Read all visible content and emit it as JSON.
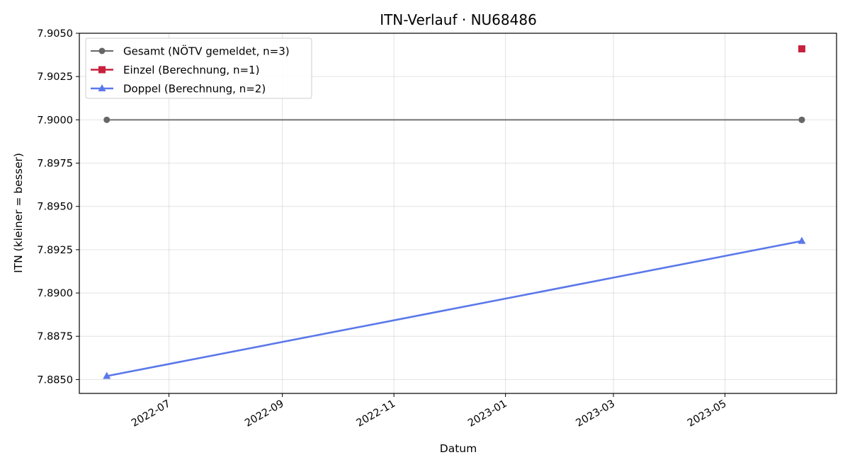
{
  "chart_data": {
    "type": "line",
    "title": "ITN-Verlauf · NU68486",
    "xlabel": "Datum",
    "ylabel": "ITN  (kleiner = besser)",
    "x_axis_type": "date",
    "xlim": [
      "2022-05-13",
      "2023-07-01"
    ],
    "ylim": [
      7.8842,
      7.905
    ],
    "xticks": [
      "2022-07",
      "2022-09",
      "2022-11",
      "2023-01",
      "2023-03",
      "2023-05"
    ],
    "yticks": [
      "7.8850",
      "7.8875",
      "7.8900",
      "7.8925",
      "7.8950",
      "7.8975",
      "7.9000",
      "7.9025",
      "7.9050"
    ],
    "grid": true,
    "legend_position": "top-left",
    "series": [
      {
        "name": "Gesamt (NÖTV gemeldet, n=3)",
        "color": "#666666",
        "marker": "circle",
        "points": [
          {
            "x": "2022-05-28",
            "y": 7.9
          },
          {
            "x": "2023-06-12",
            "y": 7.9
          },
          {
            "x": "2023-06-12",
            "y": 7.9
          }
        ]
      },
      {
        "name": "Einzel (Berechnung, n=1)",
        "color": "#c8203e",
        "marker": "square",
        "points": [
          {
            "x": "2023-06-12",
            "y": 7.9041
          }
        ]
      },
      {
        "name": "Doppel (Berechnung, n=2)",
        "color": "#5b78ea",
        "marker": "triangle",
        "points": [
          {
            "x": "2022-05-28",
            "y": 7.8852
          },
          {
            "x": "2023-06-12",
            "y": 7.893
          }
        ]
      }
    ]
  }
}
